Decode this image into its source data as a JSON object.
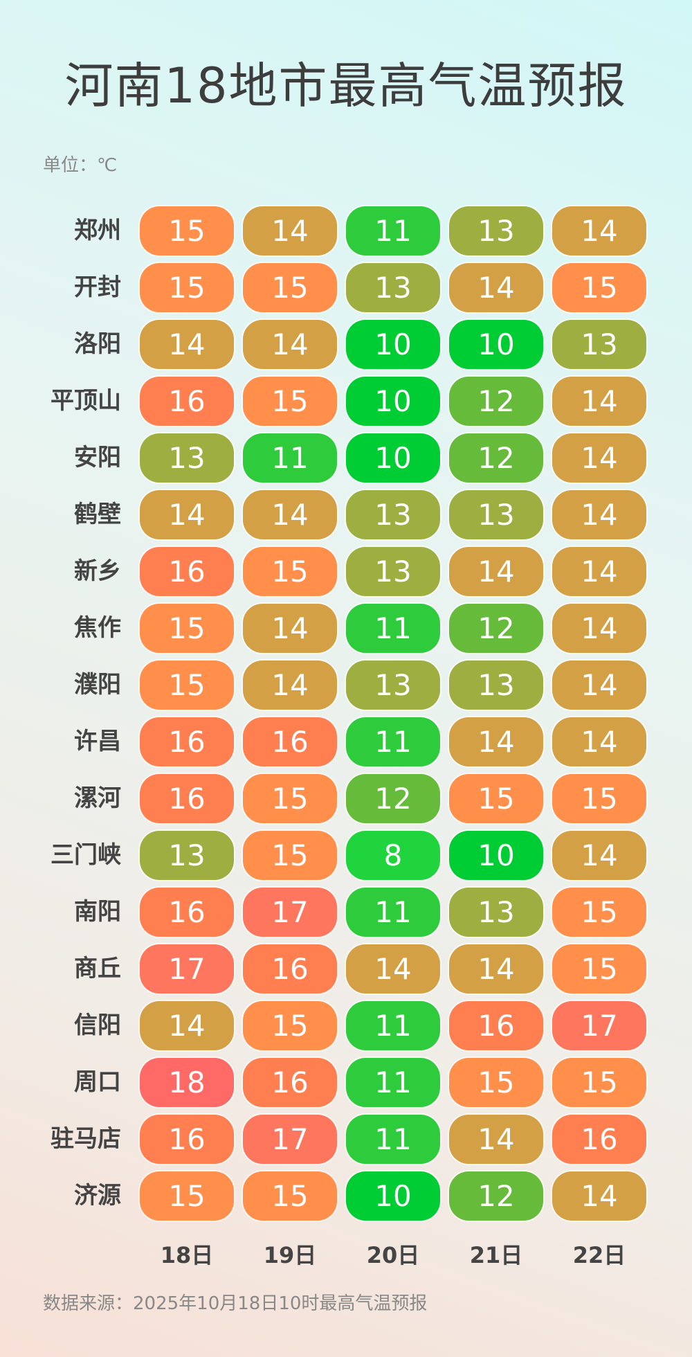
{
  "title": "河南18地市最高气温预报",
  "unit": "单位：℃",
  "source": "数据来源：2025年10月18日10时最高气温预报",
  "chart_data": {
    "type": "table",
    "title": "河南18地市最高气温预报",
    "unit": "℃",
    "columns": [
      "18日",
      "19日",
      "20日",
      "21日",
      "22日"
    ],
    "rows": [
      {
        "city": "郑州",
        "values": [
          15,
          14,
          11,
          13,
          14
        ]
      },
      {
        "city": "开封",
        "values": [
          15,
          15,
          13,
          14,
          15
        ]
      },
      {
        "city": "洛阳",
        "values": [
          14,
          14,
          10,
          10,
          13
        ]
      },
      {
        "city": "平顶山",
        "values": [
          16,
          15,
          10,
          12,
          14
        ]
      },
      {
        "city": "安阳",
        "values": [
          13,
          11,
          10,
          12,
          14
        ]
      },
      {
        "city": "鹤壁",
        "values": [
          14,
          14,
          13,
          13,
          14
        ]
      },
      {
        "city": "新乡",
        "values": [
          16,
          15,
          13,
          14,
          14
        ]
      },
      {
        "city": "焦作",
        "values": [
          15,
          14,
          11,
          12,
          14
        ]
      },
      {
        "city": "濮阳",
        "values": [
          15,
          14,
          13,
          13,
          14
        ]
      },
      {
        "city": "许昌",
        "values": [
          16,
          16,
          11,
          14,
          14
        ]
      },
      {
        "city": "漯河",
        "values": [
          16,
          15,
          12,
          15,
          15
        ]
      },
      {
        "city": "三门峡",
        "values": [
          13,
          15,
          8,
          10,
          14
        ]
      },
      {
        "city": "南阳",
        "values": [
          16,
          17,
          11,
          13,
          15
        ]
      },
      {
        "city": "商丘",
        "values": [
          17,
          16,
          14,
          14,
          15
        ]
      },
      {
        "city": "信阳",
        "values": [
          14,
          15,
          11,
          16,
          17
        ]
      },
      {
        "city": "周口",
        "values": [
          18,
          16,
          11,
          15,
          15
        ]
      },
      {
        "city": "驻马店",
        "values": [
          16,
          17,
          11,
          14,
          16
        ]
      },
      {
        "city": "济源",
        "values": [
          15,
          15,
          10,
          12,
          14
        ]
      }
    ]
  },
  "colors": {
    "8": "#1fd43c",
    "10": "#00cc33",
    "11": "#2ecc3c",
    "12": "#66bb3a",
    "13": "#9eae40",
    "14": "#d4a045",
    "15": "#ff8f4a",
    "16": "#ff7f50",
    "17": "#ff765e",
    "18": "#ff6a66"
  }
}
